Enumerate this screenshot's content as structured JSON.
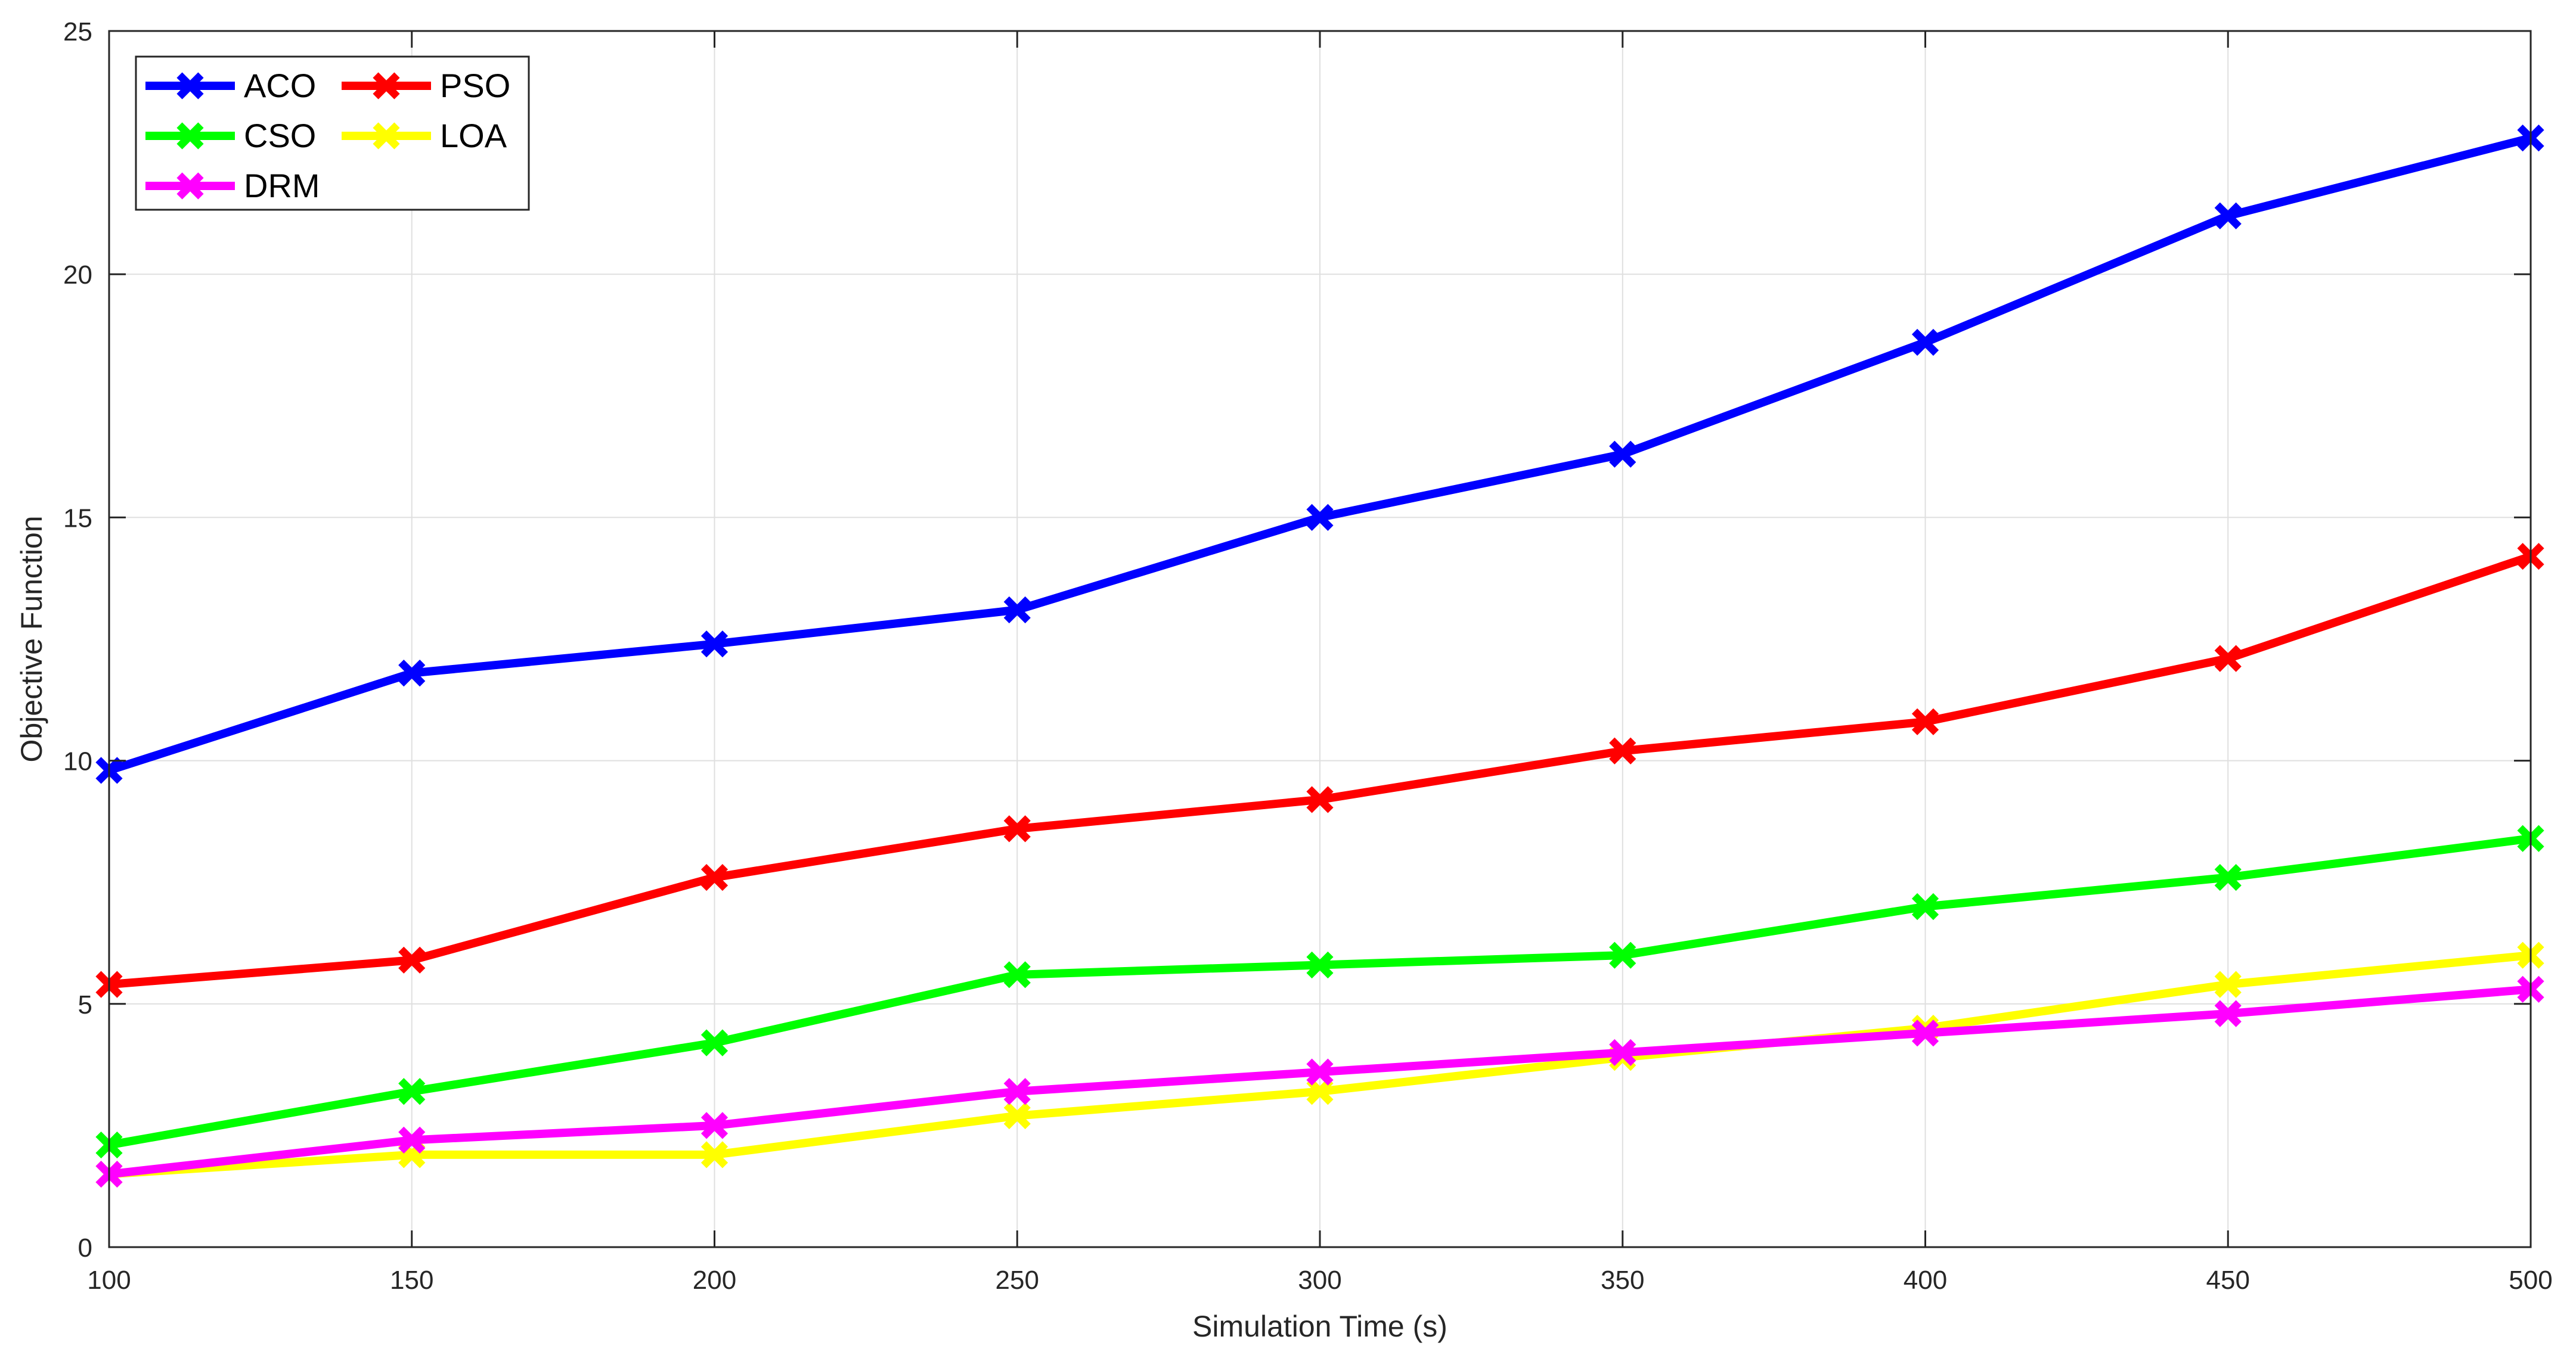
{
  "chart_data": {
    "type": "line",
    "title": "",
    "xlabel": "Simulation Time (s)",
    "ylabel": "Objective Function",
    "xlim": [
      100,
      500
    ],
    "ylim": [
      0,
      25
    ],
    "x": [
      100,
      150,
      200,
      250,
      300,
      350,
      400,
      450,
      500
    ],
    "xticks": [
      "100",
      "150",
      "200",
      "250",
      "300",
      "350",
      "400",
      "450",
      "500"
    ],
    "yticks": [
      "0",
      "5",
      "10",
      "15",
      "20",
      "25"
    ],
    "grid": true,
    "legend": {
      "position": "top-left",
      "columns": 2
    },
    "series": [
      {
        "name": "ACO",
        "color": "#0000ff",
        "marker": "x",
        "values": [
          9.8,
          11.8,
          12.4,
          13.1,
          15.0,
          16.3,
          18.6,
          21.2,
          22.8
        ]
      },
      {
        "name": "PSO",
        "color": "#ff0000",
        "marker": "x",
        "values": [
          5.4,
          5.9,
          7.6,
          8.6,
          9.2,
          10.2,
          10.8,
          12.1,
          14.2
        ]
      },
      {
        "name": "CSO",
        "color": "#00ff00",
        "marker": "x",
        "values": [
          2.1,
          3.2,
          4.2,
          5.6,
          5.8,
          6.0,
          7.0,
          7.6,
          8.4
        ]
      },
      {
        "name": "LOA",
        "color": "#ffff00",
        "marker": "x",
        "values": [
          1.5,
          1.9,
          1.9,
          2.7,
          3.2,
          3.9,
          4.5,
          5.4,
          6.0
        ]
      },
      {
        "name": "DRM",
        "color": "#ff00ff",
        "marker": "x",
        "values": [
          1.5,
          2.2,
          2.5,
          3.2,
          3.6,
          4.0,
          4.4,
          4.8,
          5.3
        ]
      }
    ]
  }
}
